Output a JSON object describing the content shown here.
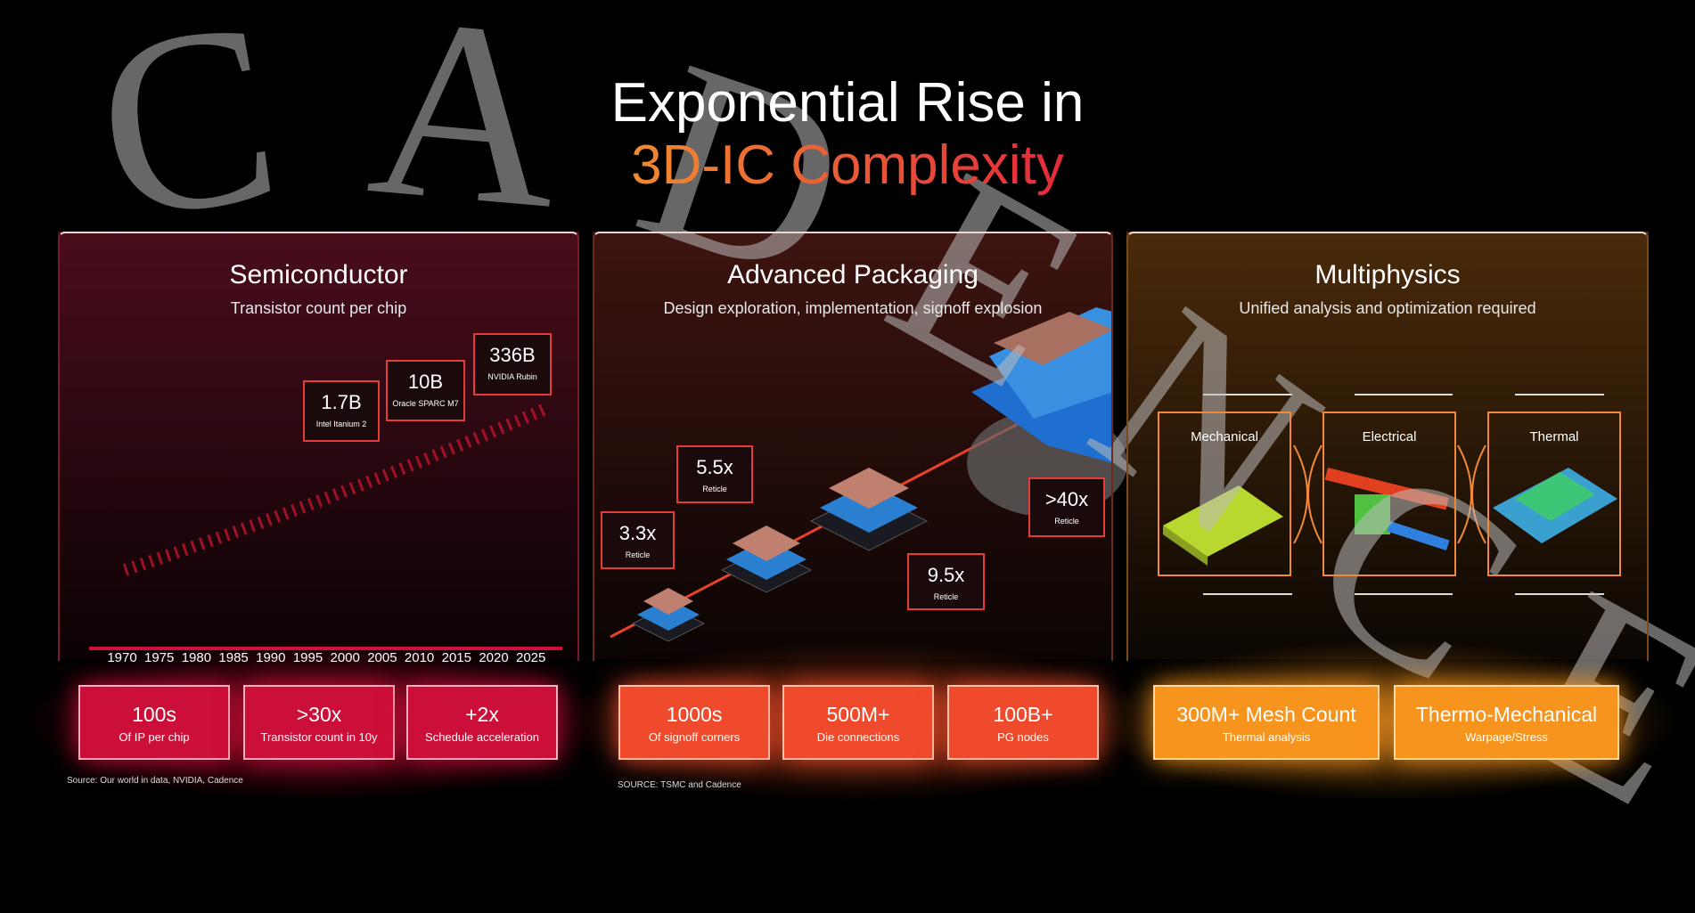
{
  "title": {
    "line1": "Exponential Rise in",
    "line2": "3D-IC Complexity"
  },
  "watermark": "CADENCE",
  "panels": [
    {
      "title": "Semiconductor",
      "subtitle": "Transistor count per chip",
      "callouts": [
        {
          "value": "1.7B",
          "label": "Intel Itanium 2"
        },
        {
          "value": "10B",
          "label": "Oracle SPARC M7"
        },
        {
          "value": "336B",
          "label": "NVIDIA Rubin"
        }
      ],
      "years": [
        "1970",
        "1975",
        "1980",
        "1985",
        "1990",
        "1995",
        "2000",
        "2005",
        "2010",
        "2015",
        "2020",
        "2025"
      ],
      "stats": [
        {
          "value": "100s",
          "label": "Of IP per chip"
        },
        {
          "value": ">30x",
          "label": "Transistor count in 10y"
        },
        {
          "value": "+2x",
          "label": "Schedule acceleration"
        }
      ],
      "source": "Source: Our world in data, NVIDIA, Cadence"
    },
    {
      "title": "Advanced Packaging",
      "subtitle": "Design exploration, implementation, signoff explosion",
      "callouts": [
        {
          "value": "3.3x",
          "label": "Reticle"
        },
        {
          "value": "5.5x",
          "label": "Reticle"
        },
        {
          "value": "9.5x",
          "label": "Reticle"
        },
        {
          "value": ">40x",
          "label": "Reticle"
        }
      ],
      "stats": [
        {
          "value": "1000s",
          "label": "Of signoff corners"
        },
        {
          "value": "500M+",
          "label": "Die connections"
        },
        {
          "value": "100B+",
          "label": "PG nodes"
        }
      ],
      "source": "SOURCE: TSMC and Cadence"
    },
    {
      "title": "Multiphysics",
      "subtitle": "Unified analysis and optimization required",
      "domains": [
        "Mechanical",
        "Electrical",
        "Thermal"
      ],
      "stats": [
        {
          "value": "300M+ Mesh Count",
          "label": "Thermal analysis"
        },
        {
          "value": "Thermo-Mechanical",
          "label": "Warpage/Stress"
        }
      ]
    }
  ]
}
